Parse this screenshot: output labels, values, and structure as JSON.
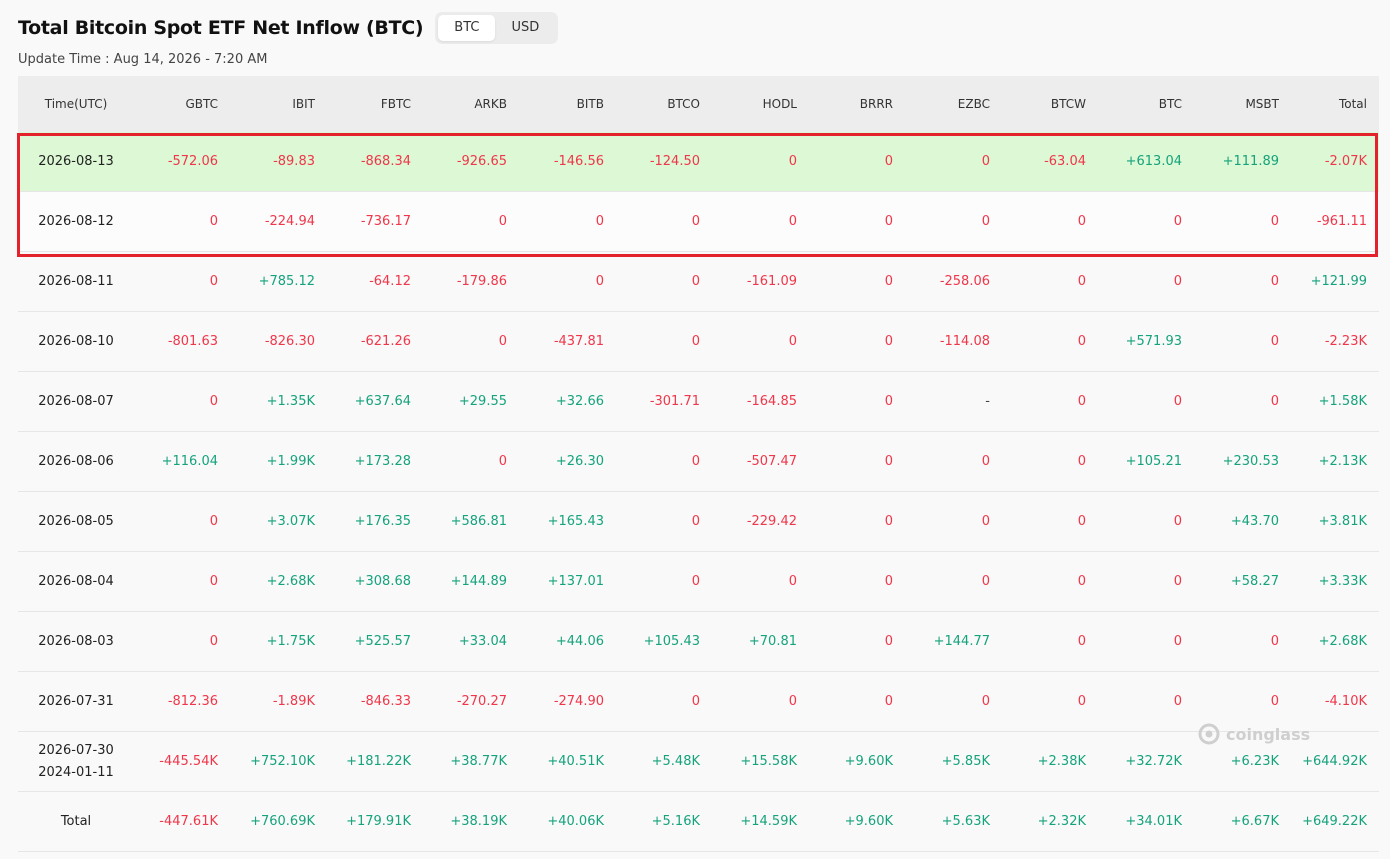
{
  "title": "Total Bitcoin Spot ETF Net Inflow (BTC)",
  "toggle": {
    "btc": "BTC",
    "usd": "USD",
    "active": "BTC"
  },
  "update_time": "Update Time : Aug 14, 2026 - 7:20 AM",
  "watermark": "coinglass",
  "colors": {
    "positive": "#15a37c",
    "negative": "#f0364a",
    "highlight_row": "#dcf8d4",
    "highlight_box": "#e3222b"
  },
  "columns": [
    "Time(UTC)",
    "GBTC",
    "IBIT",
    "FBTC",
    "ARKB",
    "BITB",
    "BTCO",
    "HODL",
    "BRRR",
    "EZBC",
    "BTCW",
    "BTC",
    "MSBT",
    "Total"
  ],
  "rows": [
    {
      "time": "2026-08-13",
      "cells": [
        "-572.06",
        "-89.83",
        "-868.34",
        "-926.65",
        "-146.56",
        "-124.50",
        "0",
        "0",
        "0",
        "-63.04",
        "+613.04",
        "+111.89",
        "-2.07K"
      ]
    },
    {
      "time": "2026-08-12",
      "cells": [
        "0",
        "-224.94",
        "-736.17",
        "0",
        "0",
        "0",
        "0",
        "0",
        "0",
        "0",
        "0",
        "0",
        "-961.11"
      ]
    },
    {
      "time": "2026-08-11",
      "cells": [
        "0",
        "+785.12",
        "-64.12",
        "-179.86",
        "0",
        "0",
        "-161.09",
        "0",
        "-258.06",
        "0",
        "0",
        "0",
        "+121.99"
      ]
    },
    {
      "time": "2026-08-10",
      "cells": [
        "-801.63",
        "-826.30",
        "-621.26",
        "0",
        "-437.81",
        "0",
        "0",
        "0",
        "-114.08",
        "0",
        "+571.93",
        "0",
        "-2.23K"
      ]
    },
    {
      "time": "2026-08-07",
      "cells": [
        "0",
        "+1.35K",
        "+637.64",
        "+29.55",
        "+32.66",
        "-301.71",
        "-164.85",
        "0",
        "-",
        "0",
        "0",
        "0",
        "+1.58K"
      ]
    },
    {
      "time": "2026-08-06",
      "cells": [
        "+116.04",
        "+1.99K",
        "+173.28",
        "0",
        "+26.30",
        "0",
        "-507.47",
        "0",
        "0",
        "0",
        "+105.21",
        "+230.53",
        "+2.13K"
      ]
    },
    {
      "time": "2026-08-05",
      "cells": [
        "0",
        "+3.07K",
        "+176.35",
        "+586.81",
        "+165.43",
        "0",
        "-229.42",
        "0",
        "0",
        "0",
        "0",
        "+43.70",
        "+3.81K"
      ]
    },
    {
      "time": "2026-08-04",
      "cells": [
        "0",
        "+2.68K",
        "+308.68",
        "+144.89",
        "+137.01",
        "0",
        "0",
        "0",
        "0",
        "0",
        "0",
        "+58.27",
        "+3.33K"
      ]
    },
    {
      "time": "2026-08-03",
      "cells": [
        "0",
        "+1.75K",
        "+525.57",
        "+33.04",
        "+44.06",
        "+105.43",
        "+70.81",
        "0",
        "+144.77",
        "0",
        "0",
        "0",
        "+2.68K"
      ]
    },
    {
      "time": "2026-07-31",
      "cells": [
        "-812.36",
        "-1.89K",
        "-846.33",
        "-270.27",
        "-274.90",
        "0",
        "0",
        "0",
        "0",
        "0",
        "0",
        "0",
        "-4.10K"
      ]
    },
    {
      "time": "2026-07-30",
      "time2": "2024-01-11",
      "cells": [
        "-445.54K",
        "+752.10K",
        "+181.22K",
        "+38.77K",
        "+40.51K",
        "+5.48K",
        "+15.58K",
        "+9.60K",
        "+5.85K",
        "+2.38K",
        "+32.72K",
        "+6.23K",
        "+644.92K"
      ]
    },
    {
      "time": "Total",
      "cells": [
        "-447.61K",
        "+760.69K",
        "+179.91K",
        "+38.19K",
        "+40.06K",
        "+5.16K",
        "+14.59K",
        "+9.60K",
        "+5.63K",
        "+2.32K",
        "+34.01K",
        "+6.67K",
        "+649.22K"
      ]
    }
  ]
}
